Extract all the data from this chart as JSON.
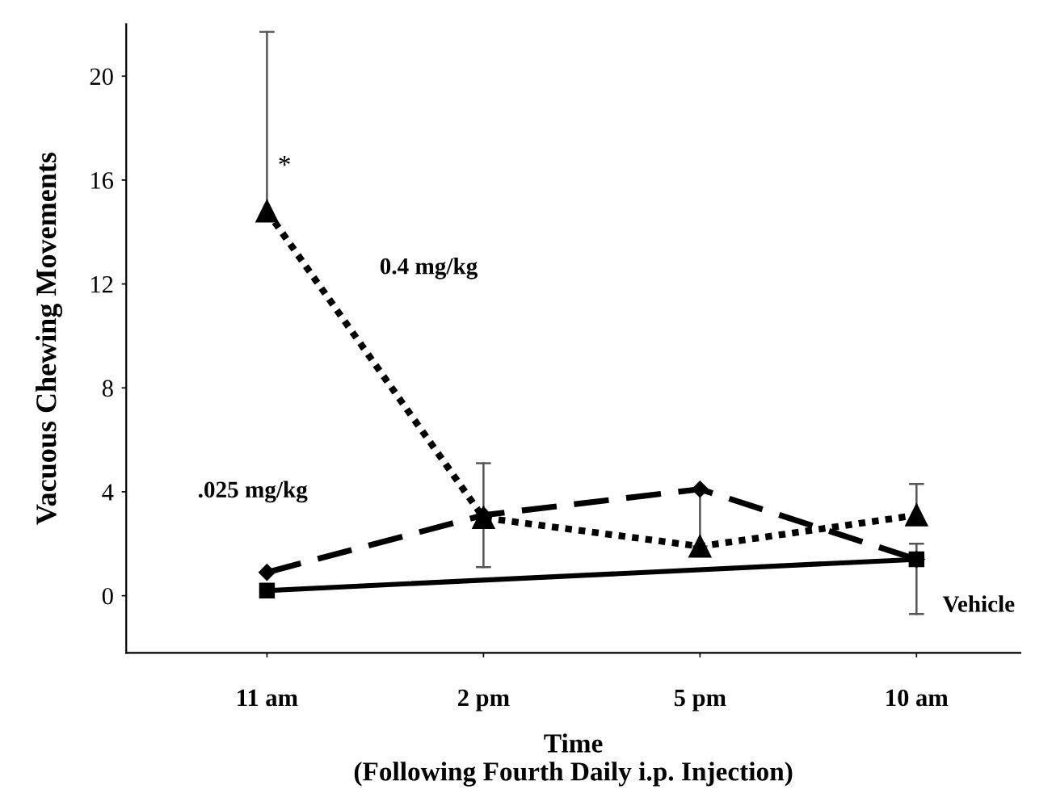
{
  "chart_data": {
    "type": "line",
    "xlabel": "Time\n(Following Fourth Daily i.p. Injection)",
    "ylabel": "Vacuous Chewing Movements",
    "categories": [
      "11 am",
      "2 pm",
      "5 pm",
      "10 am"
    ],
    "ylim": [
      -2.2,
      22
    ],
    "yticks": [
      0,
      4,
      8,
      12,
      16,
      20
    ],
    "grid": false,
    "legend": false,
    "series": [
      {
        "name": "0.4 mg/kg",
        "color": "#000000",
        "marker": "triangle",
        "line_style": "dotted",
        "values": [
          14.8,
          3.0,
          1.9,
          3.1
        ],
        "errors": [
          [
            14.8,
            21.7
          ],
          [
            1.1,
            5.1
          ],
          null,
          [
            3.1,
            4.3
          ]
        ]
      },
      {
        "name": ".025 mg/kg",
        "color": "#000000",
        "marker": "diamond",
        "line_style": "dashed",
        "values": [
          0.9,
          3.1,
          4.1,
          1.4
        ],
        "errors": [
          null,
          null,
          [
            1.9,
            4.1
          ],
          null
        ]
      },
      {
        "name": "Vehicle",
        "color": "#000000",
        "marker": "square",
        "line_style": "solid",
        "values": [
          0.2,
          null,
          null,
          1.4
        ],
        "errors": [
          null,
          null,
          null,
          [
            -0.7,
            2.0
          ]
        ]
      }
    ],
    "annotations": [
      {
        "text": "*",
        "x": "11 am",
        "y": 16.5
      }
    ]
  }
}
